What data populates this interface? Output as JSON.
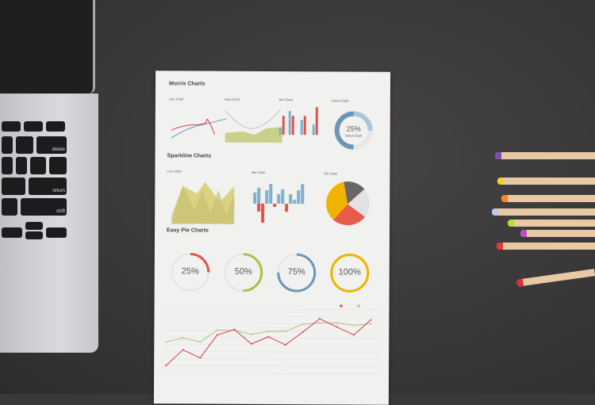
{
  "paper": {
    "morris": {
      "title": "Morris Charts",
      "line": "Line Chart",
      "area": "Area Chart",
      "bar": "Bar Chart",
      "donut": "Donut Chart",
      "donut_value": "25%",
      "donut_label": "Donut Chart"
    },
    "sparkline": {
      "title": "Sparkline Charts",
      "line": "Line Chart",
      "bar": "Bar Chart",
      "pie": "Pie Chart"
    },
    "easypie": {
      "title": "Easy Pie Charts",
      "items": [
        {
          "label": "25%",
          "value": 25,
          "color": "#e0544a"
        },
        {
          "label": "50%",
          "value": 50,
          "color": "#a8c24a"
        },
        {
          "label": "75%",
          "value": 75,
          "color": "#6d95b8"
        },
        {
          "label": "100%",
          "value": 100,
          "color": "#f0b400"
        }
      ]
    },
    "bottom_chart": {
      "series": [
        {
          "color": "#b0c27a",
          "values": [
            40,
            45,
            40,
            55,
            55,
            50,
            54,
            54,
            63,
            65,
            65,
            62,
            64
          ]
        },
        {
          "color": "#d63a5c",
          "values": [
            10,
            30,
            20,
            49,
            56,
            38,
            47,
            37,
            53,
            70,
            60,
            50,
            69
          ]
        }
      ]
    }
  },
  "keyboard": {
    "keys": [
      "delete",
      "return",
      "enter",
      "shift"
    ]
  },
  "pencil_colors": [
    "#7a4fb0",
    "#f2d21e",
    "#f08a2a",
    "#b8c8e8",
    "#b0e030",
    "#c050c0",
    "#e03a3a",
    "#e03040"
  ]
}
